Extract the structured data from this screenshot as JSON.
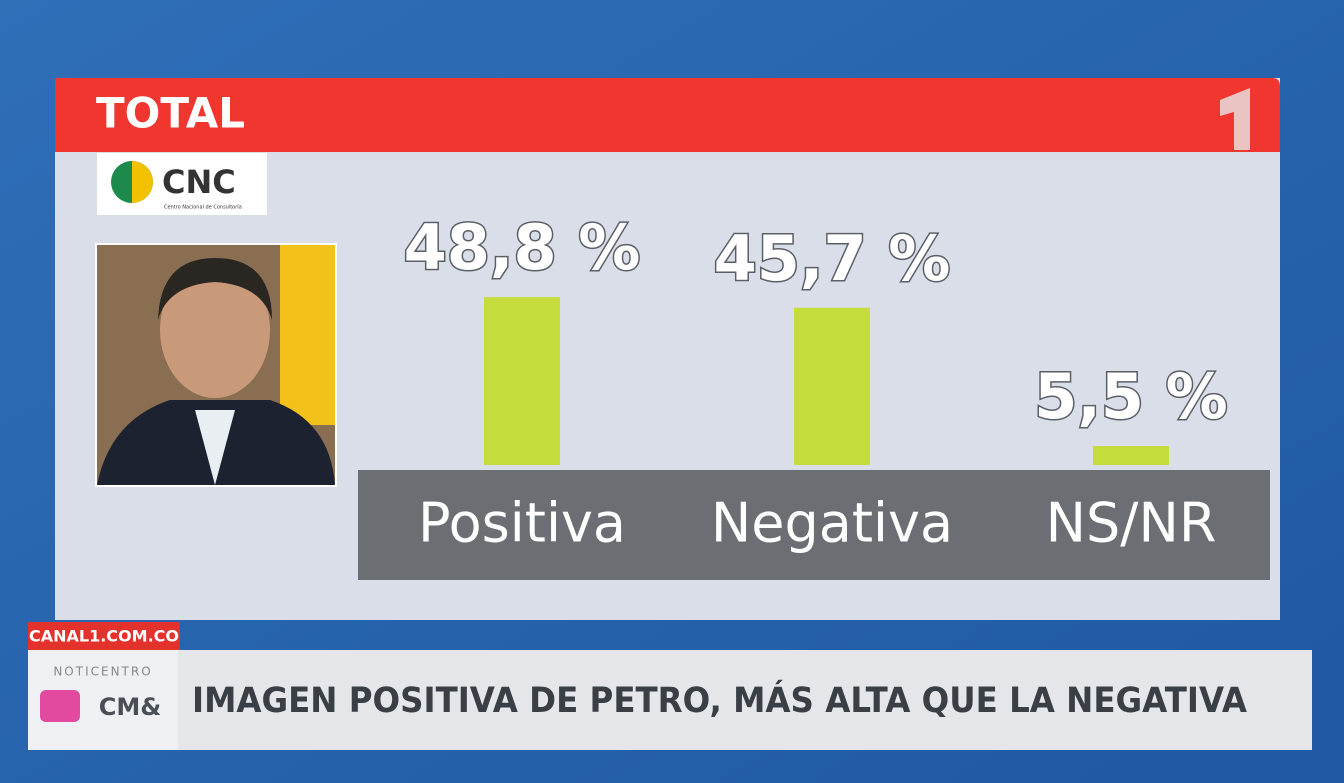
{
  "chart_data": {
    "type": "bar",
    "title": "TOTAL",
    "categories": [
      "Positiva",
      "Negativa",
      "NS/NR"
    ],
    "values": [
      48.8,
      45.7,
      5.5
    ],
    "value_labels": [
      "48,8 %",
      "45,7 %",
      "5,5 %"
    ],
    "color": "#c6dc3c"
  },
  "branding": {
    "logo": "CNC",
    "logo_subtitle": "Centro Nacional de Consultoría",
    "website": "CANAL1.COM.CO",
    "show": "NOTICENTRO",
    "channel": "CM&",
    "headline": "IMAGEN POSITIVA DE PETRO, MÁS ALTA QUE LA NEGATIVA"
  }
}
